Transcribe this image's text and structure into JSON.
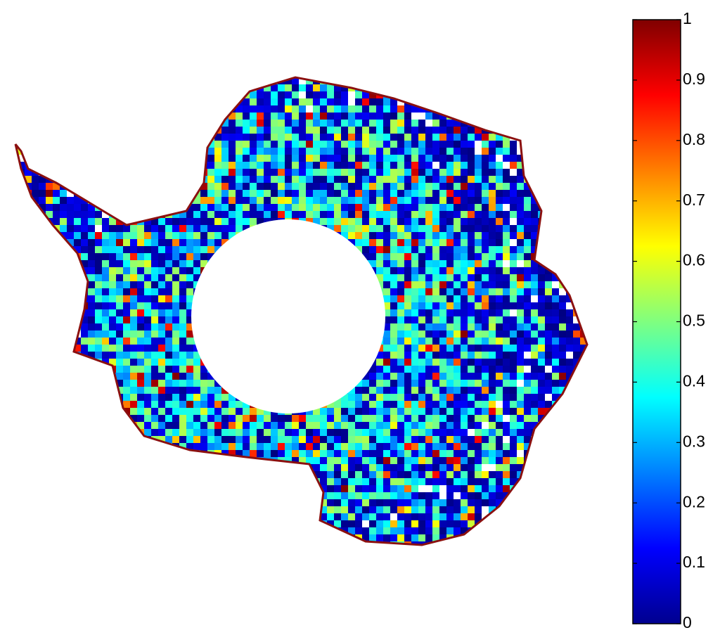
{
  "colorbar": {
    "ylim": [
      0,
      1
    ],
    "ticks": [
      0,
      0.1,
      0.2,
      0.3,
      0.4,
      0.5,
      0.6,
      0.7,
      0.8,
      0.9,
      1
    ],
    "colormap": "jet"
  }
}
